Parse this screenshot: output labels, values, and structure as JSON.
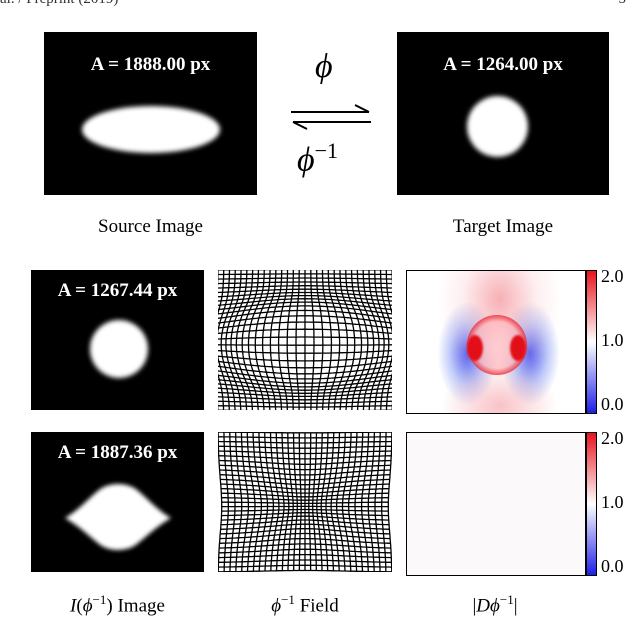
{
  "header": {
    "left": "al. / Preprint (2019)",
    "right": "5"
  },
  "top": {
    "source_area": "A = 1888.00 px",
    "target_area": "A = 1264.00 px",
    "forward_symbol": "ϕ",
    "inverse_base": "ϕ",
    "inverse_exp": "−1",
    "source_caption": "Source Image",
    "target_caption": "Target Image"
  },
  "row1": {
    "area": "A = 1267.44 px"
  },
  "row2": {
    "area": "A = 1887.36 px"
  },
  "colorbar": {
    "ticks": [
      "2.0",
      "1.0",
      "0.0"
    ]
  },
  "captions": {
    "image_i": "I",
    "image_open": "(",
    "image_phi": "ϕ",
    "image_exp": "−1",
    "image_close": ") Image",
    "field_phi": "ϕ",
    "field_exp": "−1",
    "field_word": " Field",
    "jac_bar1": "|",
    "jac_d": "D",
    "jac_phi": "ϕ",
    "jac_exp": "−1",
    "jac_bar2": "|"
  },
  "colors": {
    "expand": "#e8141e",
    "neutral": "#ffffff",
    "shrink": "#1d1ee6"
  }
}
